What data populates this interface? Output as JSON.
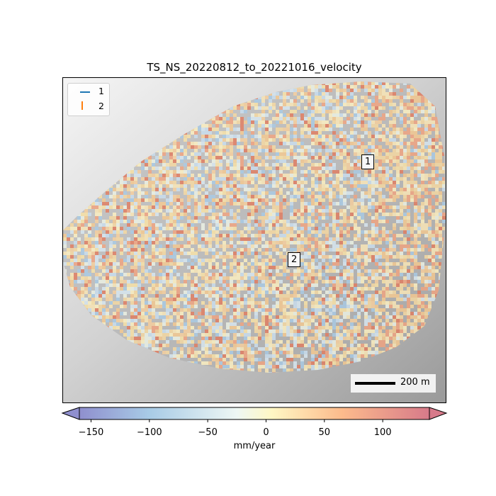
{
  "title": "TS_NS_20220812_to_20221016_velocity",
  "legend": {
    "items": [
      {
        "label": "1",
        "color": "#1f77b4",
        "marker": "line"
      },
      {
        "label": "2",
        "color": "#ff7f0e",
        "marker": "vertical-line"
      }
    ]
  },
  "points": [
    {
      "label": "1"
    },
    {
      "label": "2"
    }
  ],
  "scale_bar": {
    "label": "200 m"
  },
  "colorbar": {
    "label": "mm/year",
    "colormap": "RdYlBu_r",
    "range": [
      -160,
      140
    ],
    "extend": "both",
    "ticks": [
      {
        "value": -150,
        "label": "−150"
      },
      {
        "value": -100,
        "label": "−100"
      },
      {
        "value": -50,
        "label": "−50"
      },
      {
        "value": 0,
        "label": "0"
      },
      {
        "value": 50,
        "label": "50"
      },
      {
        "value": 100,
        "label": "100"
      }
    ]
  },
  "colors": {
    "negative": "#4575b4",
    "neutral": "#ffffbf",
    "positive": "#d73027"
  }
}
